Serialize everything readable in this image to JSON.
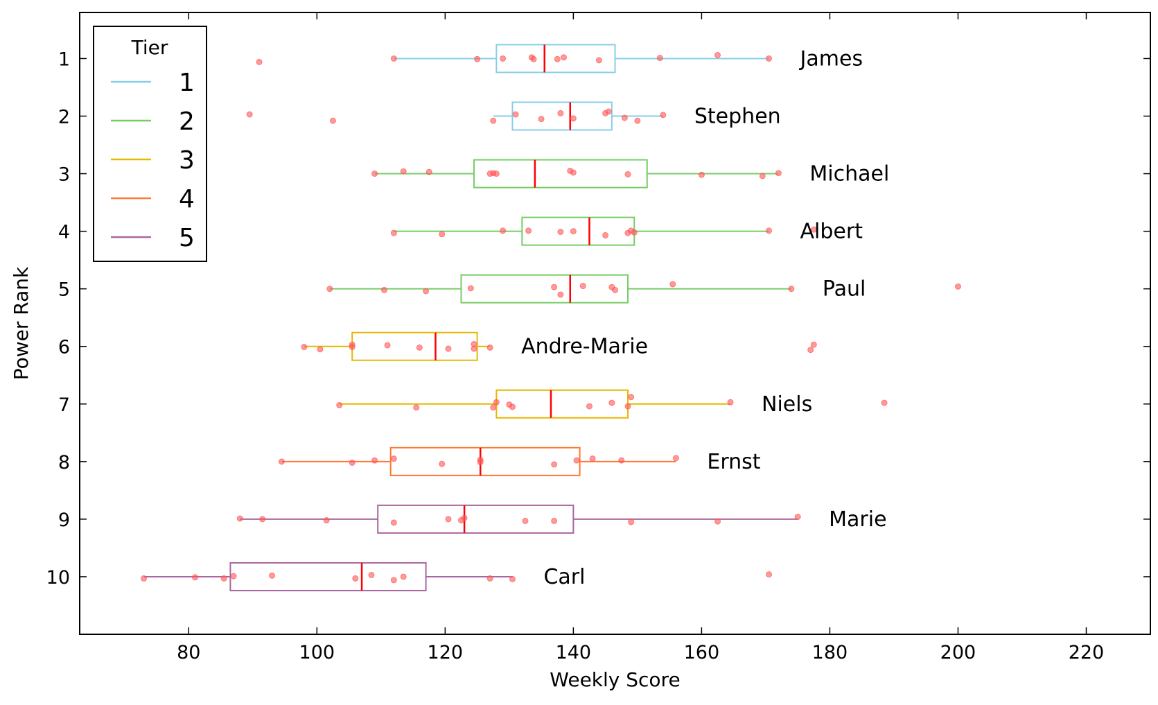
{
  "chart_data": {
    "type": "boxplot",
    "xlabel": "Weekly Score",
    "ylabel": "Power Rank",
    "xlim": [
      63,
      230
    ],
    "xticks": [
      80,
      100,
      120,
      140,
      160,
      180,
      200,
      220
    ],
    "yticks": [
      1,
      2,
      3,
      4,
      5,
      6,
      7,
      8,
      9,
      10
    ],
    "ylim": [
      0.2,
      11
    ],
    "grid": false,
    "legend": {
      "title": "Tier",
      "placement": "top-left",
      "entries": [
        {
          "label": "1",
          "color": "#87CEEB"
        },
        {
          "label": "2",
          "color": "#77CC66"
        },
        {
          "label": "3",
          "color": "#E6B800"
        },
        {
          "label": "4",
          "color": "#FF7733"
        },
        {
          "label": "5",
          "color": "#AA66A0"
        }
      ]
    },
    "median_color": "#FF0000",
    "point_color": "#FF5555",
    "series": [
      {
        "name": "James",
        "rank": 1,
        "tier": "1",
        "whisker_low": 112,
        "q1": 128,
        "median": 135.5,
        "q3": 146.5,
        "whisker_high": 170.5,
        "points": [
          [
            91,
            1.06
          ],
          [
            112,
            1.0
          ],
          [
            125,
            1.01
          ],
          [
            129,
            1.0
          ],
          [
            133.5,
            0.98
          ],
          [
            133.8,
            1.01
          ],
          [
            137.5,
            1.01
          ],
          [
            138.5,
            0.98
          ],
          [
            144,
            1.03
          ],
          [
            153.5,
            0.99
          ],
          [
            162.5,
            0.94
          ],
          [
            170.5,
            1.0
          ]
        ]
      },
      {
        "name": "Stephen",
        "rank": 2,
        "tier": "1",
        "whisker_low": 127.5,
        "q1": 130.5,
        "median": 139.5,
        "q3": 146,
        "whisker_high": 154,
        "points": [
          [
            89.5,
            1.97
          ],
          [
            102.5,
            2.08
          ],
          [
            127.5,
            2.08
          ],
          [
            131,
            1.97
          ],
          [
            135,
            2.05
          ],
          [
            138,
            1.95
          ],
          [
            140,
            2.04
          ],
          [
            145,
            1.95
          ],
          [
            145.5,
            1.92
          ],
          [
            148,
            2.03
          ],
          [
            150,
            2.08
          ],
          [
            154,
            1.98
          ]
        ]
      },
      {
        "name": "Michael",
        "rank": 3,
        "tier": "2",
        "whisker_low": 109,
        "q1": 124.5,
        "median": 134,
        "q3": 151.5,
        "whisker_high": 172,
        "points": [
          [
            109,
            3.0
          ],
          [
            113.5,
            2.96
          ],
          [
            117.5,
            2.97
          ],
          [
            127,
            3.0
          ],
          [
            127.5,
            2.99
          ],
          [
            128,
            3.0
          ],
          [
            139.5,
            2.95
          ],
          [
            140,
            2.98
          ],
          [
            148.5,
            3.01
          ],
          [
            160,
            3.02
          ],
          [
            169.5,
            3.04
          ],
          [
            172,
            2.99
          ]
        ]
      },
      {
        "name": "Albert",
        "rank": 4,
        "tier": "2",
        "whisker_low": 112,
        "q1": 132,
        "median": 142.5,
        "q3": 149.5,
        "whisker_high": 170.5,
        "points": [
          [
            112,
            4.03
          ],
          [
            119.5,
            4.05
          ],
          [
            129,
            3.99
          ],
          [
            133,
            3.99
          ],
          [
            138,
            4.01
          ],
          [
            140,
            4.0
          ],
          [
            145,
            4.07
          ],
          [
            148.5,
            4.03
          ],
          [
            149,
            3.99
          ],
          [
            149.5,
            4.02
          ],
          [
            170.5,
            3.99
          ],
          [
            177.5,
            3.97
          ]
        ]
      },
      {
        "name": "Paul",
        "rank": 5,
        "tier": "2",
        "whisker_low": 102,
        "q1": 122.5,
        "median": 139.5,
        "q3": 148.5,
        "whisker_high": 174,
        "points": [
          [
            102,
            5.0
          ],
          [
            110.5,
            5.02
          ],
          [
            117,
            5.04
          ],
          [
            124,
            4.99
          ],
          [
            137,
            4.97
          ],
          [
            138,
            5.1
          ],
          [
            141.5,
            4.95
          ],
          [
            146,
            4.97
          ],
          [
            146.5,
            5.02
          ],
          [
            155.5,
            4.92
          ],
          [
            174,
            5.0
          ],
          [
            200,
            4.96
          ]
        ]
      },
      {
        "name": "Andre-Marie",
        "rank": 6,
        "tier": "3",
        "whisker_low": 98,
        "q1": 105.5,
        "median": 118.5,
        "q3": 125,
        "whisker_high": 127,
        "points": [
          [
            98,
            6.01
          ],
          [
            100.5,
            6.05
          ],
          [
            105.5,
            5.97
          ],
          [
            105.5,
            6.01
          ],
          [
            111,
            5.98
          ],
          [
            116,
            6.02
          ],
          [
            120.5,
            6.04
          ],
          [
            124.5,
            5.96
          ],
          [
            124.5,
            6.04
          ],
          [
            127,
            6.02
          ],
          [
            177,
            6.06
          ],
          [
            177.5,
            5.97
          ]
        ]
      },
      {
        "name": "Niels",
        "rank": 7,
        "tier": "3",
        "whisker_low": 103.5,
        "q1": 128,
        "median": 136.5,
        "q3": 148.5,
        "whisker_high": 164.5,
        "points": [
          [
            103.5,
            7.02
          ],
          [
            115.5,
            7.06
          ],
          [
            127.5,
            7.06
          ],
          [
            128,
            6.97
          ],
          [
            130,
            7.01
          ],
          [
            130.5,
            7.05
          ],
          [
            142.5,
            7.04
          ],
          [
            146,
            6.98
          ],
          [
            148.5,
            7.04
          ],
          [
            149,
            6.88
          ],
          [
            164.5,
            6.97
          ],
          [
            188.5,
            6.98
          ]
        ]
      },
      {
        "name": "Ernst",
        "rank": 8,
        "tier": "4",
        "whisker_low": 94.5,
        "q1": 111.5,
        "median": 125.5,
        "q3": 141,
        "whisker_high": 156,
        "points": [
          [
            94.5,
            8.0
          ],
          [
            105.5,
            8.02
          ],
          [
            109,
            7.98
          ],
          [
            112,
            7.95
          ],
          [
            119.5,
            8.04
          ],
          [
            125.5,
            7.97
          ],
          [
            125.5,
            8.01
          ],
          [
            137,
            8.05
          ],
          [
            140.5,
            7.98
          ],
          [
            143,
            7.95
          ],
          [
            147.5,
            7.98
          ],
          [
            156,
            7.94
          ]
        ]
      },
      {
        "name": "Marie",
        "rank": 9,
        "tier": "5",
        "whisker_low": 88,
        "q1": 109.5,
        "median": 123,
        "q3": 140,
        "whisker_high": 175,
        "points": [
          [
            88,
            8.99
          ],
          [
            91.5,
            9.0
          ],
          [
            101.5,
            9.02
          ],
          [
            112,
            9.06
          ],
          [
            120.5,
            9.0
          ],
          [
            122.5,
            9.02
          ],
          [
            123,
            8.98
          ],
          [
            132.5,
            9.03
          ],
          [
            137,
            9.03
          ],
          [
            149,
            9.05
          ],
          [
            162.5,
            9.04
          ],
          [
            175,
            8.96
          ]
        ]
      },
      {
        "name": "Carl",
        "rank": 10,
        "tier": "5",
        "whisker_low": 73,
        "q1": 86.5,
        "median": 107,
        "q3": 117,
        "whisker_high": 130.5,
        "points": [
          [
            73,
            10.03
          ],
          [
            81,
            10.01
          ],
          [
            85.5,
            10.03
          ],
          [
            87,
            9.99
          ],
          [
            93,
            9.98
          ],
          [
            106,
            10.03
          ],
          [
            108.5,
            9.97
          ],
          [
            112,
            10.06
          ],
          [
            113.5,
            10.0
          ],
          [
            127,
            10.03
          ],
          [
            130.5,
            10.04
          ],
          [
            170.5,
            9.96
          ]
        ]
      }
    ]
  }
}
